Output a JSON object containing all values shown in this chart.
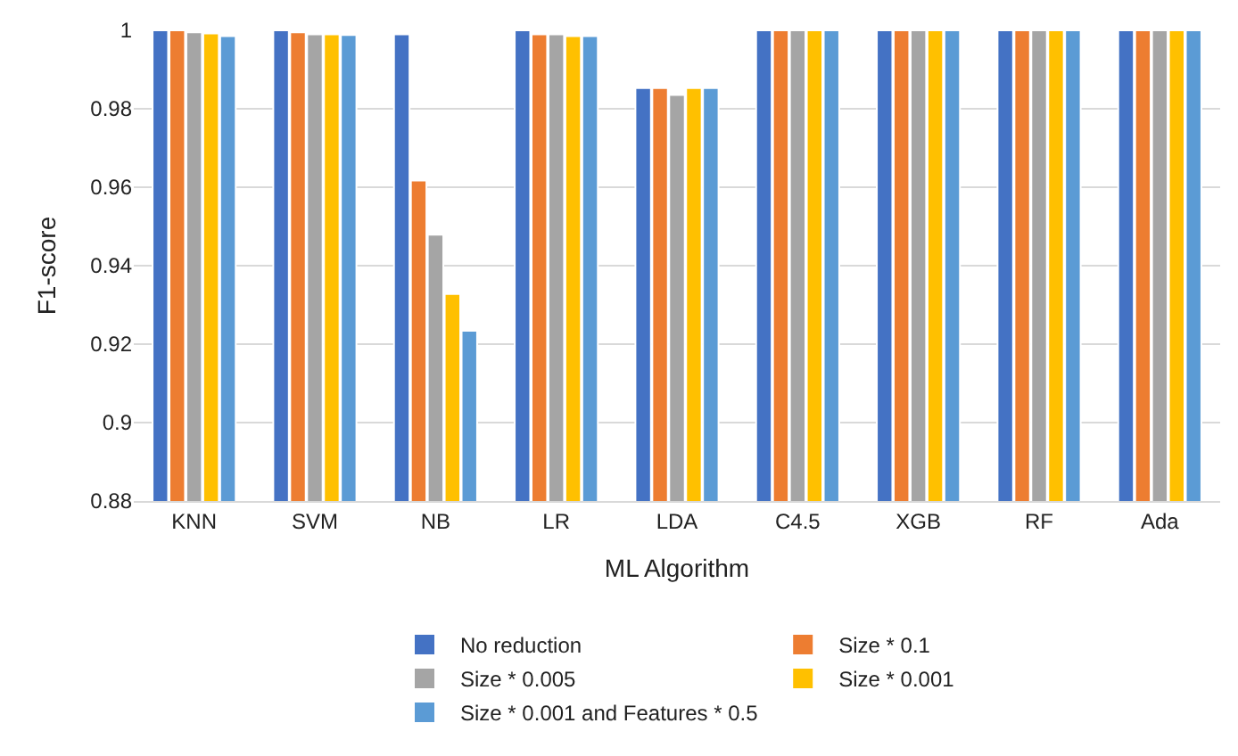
{
  "chart_data": {
    "type": "bar",
    "xlabel": "ML Algorithm",
    "ylabel": "F1-score",
    "categories": [
      "KNN",
      "SVM",
      "NB",
      "LR",
      "LDA",
      "C4.5",
      "XGB",
      "RF",
      "Ada"
    ],
    "series": [
      {
        "name": "No reduction",
        "color": "#4472c4",
        "values": [
          1.0,
          1.0,
          0.999,
          1.0,
          0.9853,
          1.0,
          1.0,
          1.0,
          1.0
        ]
      },
      {
        "name": "Size * 0.1",
        "color": "#ed7d31",
        "values": [
          1.0,
          0.9995,
          0.9617,
          0.999,
          0.9853,
          1.0,
          1.0,
          1.0,
          1.0
        ]
      },
      {
        "name": "Size * 0.005",
        "color": "#a5a5a5",
        "values": [
          0.9995,
          0.999,
          0.9479,
          0.999,
          0.9835,
          1.0,
          1.0,
          1.0,
          1.0
        ]
      },
      {
        "name": "Size * 0.001",
        "color": "#ffc000",
        "values": [
          0.9992,
          0.999,
          0.9328,
          0.9985,
          0.9853,
          1.0,
          1.0,
          1.0,
          1.0
        ]
      },
      {
        "name": "Size * 0.001 and Features * 0.5",
        "color": "#5b9bd5",
        "values": [
          0.9985,
          0.9988,
          0.9234,
          0.9985,
          0.9853,
          1.0,
          1.0,
          1.0,
          1.0
        ]
      }
    ],
    "ylim": [
      0.88,
      1.0
    ],
    "yticks": [
      0.88,
      0.9,
      0.92,
      0.94,
      0.96,
      0.98,
      1
    ],
    "grid": "y",
    "legend": "bottom"
  }
}
